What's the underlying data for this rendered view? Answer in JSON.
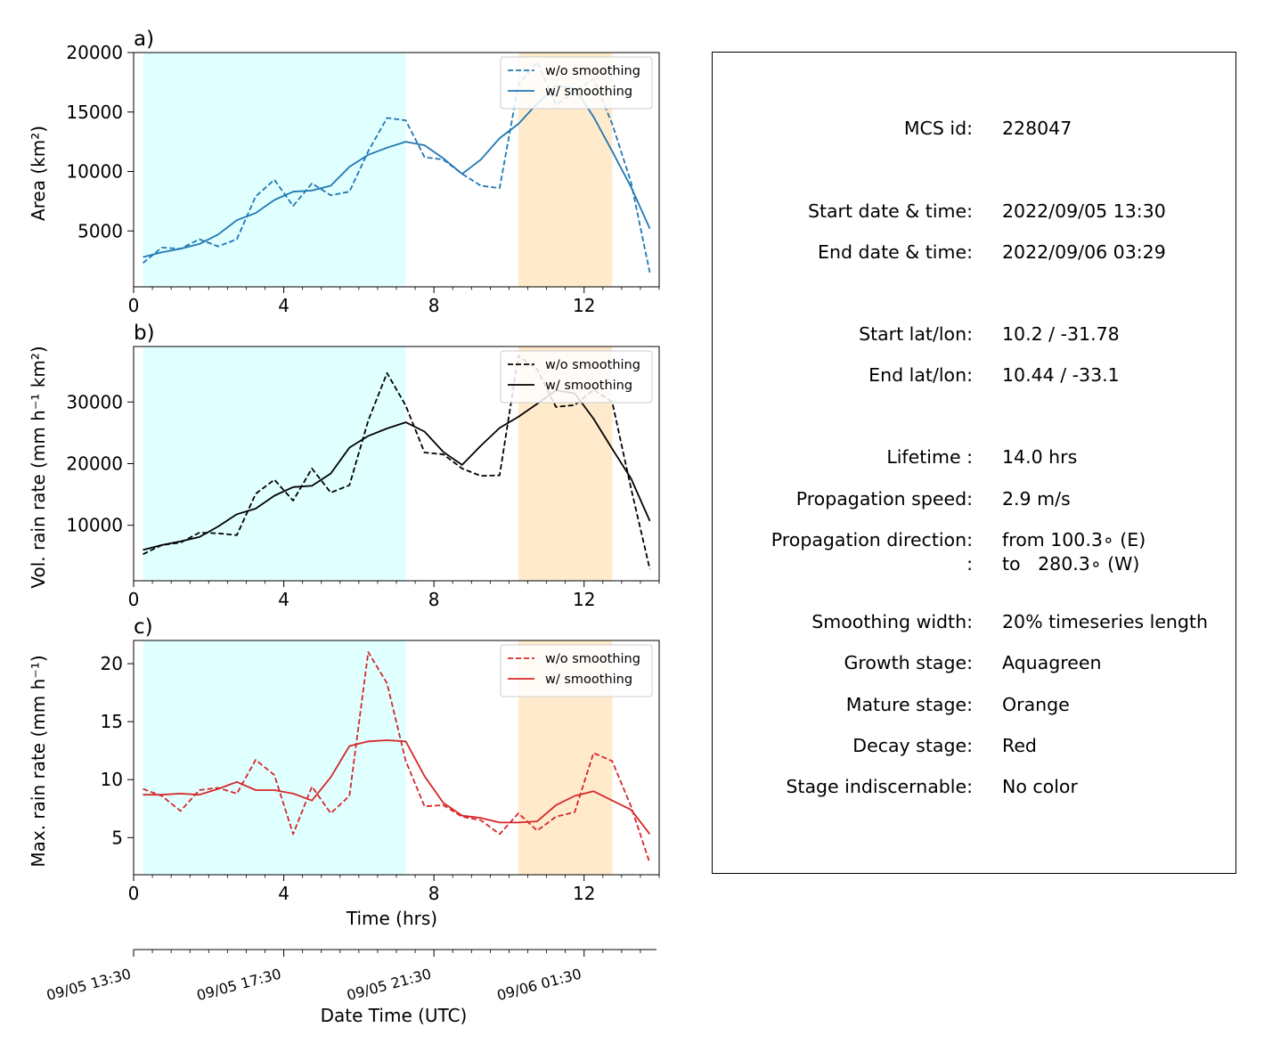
{
  "chart_data": [
    {
      "type": "line",
      "panel_label": "a)",
      "ylabel": "Area  (km²)",
      "xlabel": "",
      "xlim": [
        0,
        14
      ],
      "ylim": [
        300,
        20000
      ],
      "xticks": [
        0,
        4,
        8,
        12
      ],
      "xtick_labels": [
        "0",
        "4",
        "8",
        "12"
      ],
      "yticks": [
        5000,
        10000,
        15000,
        20000
      ],
      "ytick_labels": [
        "5000",
        "10000",
        "15000",
        "20000"
      ],
      "legend_position": "upper right",
      "shaded_spans": [
        {
          "stage": "Growth stage",
          "x": [
            0.25,
            7.25
          ],
          "color": "#e0ffff"
        },
        {
          "stage": "Mature stage",
          "x": [
            10.25,
            12.75
          ],
          "color": "#ffebcc"
        }
      ],
      "series": [
        {
          "name": "w/o smoothing",
          "style": "dashed",
          "color": "#1f77b4",
          "x": [
            0.25,
            0.75,
            1.25,
            1.75,
            2.25,
            2.75,
            3.25,
            3.75,
            4.25,
            4.75,
            5.25,
            5.75,
            6.25,
            6.75,
            7.25,
            7.75,
            8.25,
            8.75,
            9.25,
            9.75,
            10.25,
            10.75,
            11.25,
            11.75,
            12.25,
            12.75,
            13.25,
            13.75
          ],
          "y": [
            2300,
            3600,
            3500,
            4300,
            3700,
            4300,
            7900,
            9300,
            7100,
            9000,
            8000,
            8300,
            11700,
            14500,
            14300,
            11200,
            11000,
            9800,
            8800,
            8600,
            17300,
            19200,
            15600,
            16700,
            17800,
            14000,
            9100,
            1500
          ]
        },
        {
          "name": "w/ smoothing",
          "style": "solid",
          "color": "#1f77b4",
          "x": [
            0.25,
            0.75,
            1.25,
            1.75,
            2.25,
            2.75,
            3.25,
            3.75,
            4.25,
            4.75,
            5.25,
            5.75,
            6.25,
            6.75,
            7.25,
            7.75,
            8.25,
            8.75,
            9.25,
            9.75,
            10.25,
            10.75,
            11.25,
            11.75,
            12.25,
            12.75,
            13.25,
            13.75
          ],
          "y": [
            2800,
            3200,
            3500,
            3900,
            4700,
            5900,
            6500,
            7600,
            8300,
            8400,
            8800,
            10400,
            11400,
            12000,
            12500,
            12200,
            11100,
            9800,
            11000,
            12800,
            14000,
            15700,
            17200,
            17000,
            14600,
            11700,
            8700,
            5200
          ]
        }
      ]
    },
    {
      "type": "line",
      "panel_label": "b)",
      "ylabel": "Vol. rain rate (mm h⁻¹ km²)",
      "xlabel": "",
      "xlim": [
        0,
        14
      ],
      "ylim": [
        1000,
        39000
      ],
      "xticks": [
        0,
        4,
        8,
        12
      ],
      "xtick_labels": [
        "0",
        "4",
        "8",
        "12"
      ],
      "yticks": [
        10000,
        20000,
        30000
      ],
      "ytick_labels": [
        "10000",
        "20000",
        "30000"
      ],
      "legend_position": "upper right",
      "shaded_spans": [
        {
          "stage": "Growth stage",
          "x": [
            0.25,
            7.25
          ],
          "color": "#e0ffff"
        },
        {
          "stage": "Mature stage",
          "x": [
            10.25,
            12.75
          ],
          "color": "#ffebcc"
        }
      ],
      "series": [
        {
          "name": "w/o smoothing",
          "style": "dashed",
          "color": "#000000",
          "x": [
            0.25,
            0.75,
            1.25,
            1.75,
            2.25,
            2.75,
            3.25,
            3.75,
            4.25,
            4.75,
            5.25,
            5.75,
            6.25,
            6.75,
            7.25,
            7.75,
            8.25,
            8.75,
            9.25,
            9.75,
            10.25,
            10.75,
            11.25,
            11.75,
            12.25,
            12.75,
            13.25,
            13.75
          ],
          "y": [
            5300,
            6800,
            7200,
            8800,
            8700,
            8400,
            15100,
            17400,
            14000,
            19200,
            15300,
            16500,
            27000,
            34700,
            29400,
            21800,
            21500,
            19200,
            18000,
            18100,
            37500,
            35300,
            29200,
            29500,
            32000,
            30000,
            16000,
            2900
          ]
        },
        {
          "name": "w/ smoothing",
          "style": "solid",
          "color": "#000000",
          "x": [
            0.25,
            0.75,
            1.25,
            1.75,
            2.25,
            2.75,
            3.25,
            3.75,
            4.25,
            4.75,
            5.25,
            5.75,
            6.25,
            6.75,
            7.25,
            7.75,
            8.25,
            8.75,
            9.25,
            9.75,
            10.25,
            10.75,
            11.25,
            11.75,
            12.25,
            12.75,
            13.25,
            13.75
          ],
          "y": [
            6000,
            6800,
            7400,
            8100,
            9800,
            11800,
            12700,
            14800,
            16200,
            16400,
            18400,
            22600,
            24500,
            25700,
            26700,
            25200,
            21900,
            19800,
            22900,
            25800,
            27600,
            29700,
            31900,
            31400,
            27300,
            22400,
            17600,
            10700
          ]
        }
      ]
    },
    {
      "type": "line",
      "panel_label": "c)",
      "ylabel": "Max. rain rate  (mm h⁻¹)",
      "xlabel": "Time (hrs)",
      "xlim": [
        0,
        14
      ],
      "ylim": [
        1.8,
        22
      ],
      "xticks": [
        0,
        4,
        8,
        12
      ],
      "xtick_labels": [
        "0",
        "4",
        "8",
        "12"
      ],
      "yticks": [
        5,
        10,
        15,
        20
      ],
      "ytick_labels": [
        "5",
        "10",
        "15",
        "20"
      ],
      "legend_position": "upper right",
      "shaded_spans": [
        {
          "stage": "Growth stage",
          "x": [
            0.25,
            7.25
          ],
          "color": "#e0ffff"
        },
        {
          "stage": "Mature stage",
          "x": [
            10.25,
            12.75
          ],
          "color": "#ffebcc"
        }
      ],
      "series": [
        {
          "name": "w/o smoothing",
          "style": "dashed",
          "color": "#d62728",
          "x": [
            0.25,
            0.75,
            1.25,
            1.75,
            2.25,
            2.75,
            3.25,
            3.75,
            4.25,
            4.75,
            5.25,
            5.75,
            6.25,
            6.75,
            7.25,
            7.75,
            8.25,
            8.75,
            9.25,
            9.75,
            10.25,
            10.75,
            11.25,
            11.75,
            12.25,
            12.75,
            13.25,
            13.75
          ],
          "y": [
            9.2,
            8.6,
            7.3,
            9.1,
            9.3,
            8.8,
            11.7,
            10.4,
            5.3,
            9.4,
            7.1,
            8.6,
            21.0,
            18.3,
            11.6,
            7.7,
            7.8,
            6.8,
            6.5,
            5.3,
            7.1,
            5.6,
            6.8,
            7.2,
            12.3,
            11.6,
            7.7,
            2.8
          ]
        },
        {
          "name": "w/ smoothing",
          "style": "solid",
          "color": "#d62728",
          "x": [
            0.25,
            0.75,
            1.25,
            1.75,
            2.25,
            2.75,
            3.25,
            3.75,
            4.25,
            4.75,
            5.25,
            5.75,
            6.25,
            6.75,
            7.25,
            7.75,
            8.25,
            8.75,
            9.25,
            9.75,
            10.25,
            10.75,
            11.25,
            11.75,
            12.25,
            12.75,
            13.25,
            13.75
          ],
          "y": [
            8.7,
            8.7,
            8.8,
            8.7,
            9.2,
            9.8,
            9.1,
            9.1,
            8.8,
            8.2,
            10.2,
            12.9,
            13.3,
            13.4,
            13.3,
            10.3,
            8.0,
            6.9,
            6.7,
            6.3,
            6.3,
            6.4,
            7.8,
            8.6,
            9.0,
            8.2,
            7.4,
            5.3
          ]
        }
      ]
    }
  ],
  "datetime_axis": {
    "label": "Date Time (UTC)",
    "tick_values_hrs": [
      0,
      4,
      8,
      12
    ],
    "tick_labels": [
      "09/05 13:30",
      "09/05 17:30",
      "09/05 21:30",
      "09/06 01:30"
    ],
    "minor_tick_step_hrs": 0.5,
    "xlim": [
      0,
      14
    ]
  },
  "info": [
    {
      "key": "MCS id:",
      "value": "228047"
    },
    {
      "key": "Start date & time:",
      "value": "2022/09/05 13:30"
    },
    {
      "key": "End date & time:",
      "value": "2022/09/06 03:29"
    },
    {
      "key": "Start lat/lon:",
      "value": "10.2 / -31.78"
    },
    {
      "key": "End lat/lon:",
      "value": "10.44 / -33.1"
    },
    {
      "key": "Lifetime :",
      "value": "14.0 hrs"
    },
    {
      "key": "Propagation speed:",
      "value": "2.9 m/s"
    },
    {
      "key": "Propagation direction:",
      "value": "from 100.3∘ (E)"
    },
    {
      "key": ":",
      "value": "to   280.3∘ (W)"
    },
    {
      "key": "Smoothing width:",
      "value": "20% timeseries length"
    },
    {
      "key": "Growth stage:",
      "value": "Aquagreen"
    },
    {
      "key": "Mature stage:",
      "value": "Orange"
    },
    {
      "key": "Decay stage:",
      "value": "Red"
    },
    {
      "key": "Stage indiscernable:",
      "value": "No color"
    }
  ]
}
